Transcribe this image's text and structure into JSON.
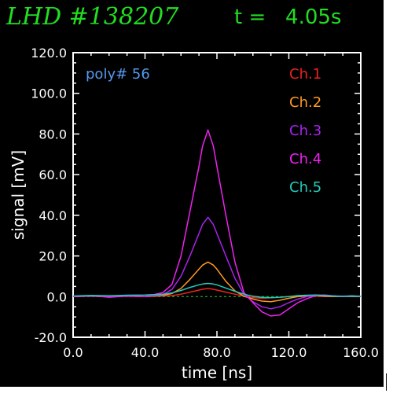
{
  "header": {
    "shot_label": "LHD #138207",
    "time_label": "t =   4.05s"
  },
  "chart_data": {
    "type": "line",
    "annotation": "poly# 56",
    "xlabel": "time [ns]",
    "ylabel": "signal [mV]",
    "xlim": [
      0,
      160
    ],
    "ylim": [
      -20,
      120
    ],
    "x_ticks": [
      "0.0",
      "40.0",
      "80.0",
      "120.0",
      "160.0"
    ],
    "y_ticks": [
      "-20.0",
      "0.0",
      "20.0",
      "40.0",
      "60.0",
      "80.0",
      "100.0",
      "120.0"
    ],
    "x_tick_values": [
      0,
      40,
      80,
      120,
      160
    ],
    "y_tick_values": [
      -20,
      0,
      20,
      40,
      60,
      80,
      100,
      120
    ],
    "grid": false,
    "legend_position": "top-right",
    "zero_line_color": "#22cc22",
    "x": [
      0,
      10,
      20,
      30,
      40,
      50,
      55,
      60,
      65,
      70,
      72,
      75,
      78,
      80,
      85,
      90,
      95,
      100,
      105,
      110,
      115,
      120,
      125,
      130,
      135,
      140,
      145,
      150,
      155,
      160
    ],
    "series": [
      {
        "name": "Ch.1",
        "color": "#ee2222",
        "values": [
          0,
          0.3,
          -0.2,
          0.2,
          0,
          0.3,
          0.5,
          1.2,
          2.2,
          3.2,
          3.6,
          4,
          3.6,
          3.2,
          2.2,
          1.2,
          0.2,
          -0.5,
          -0.8,
          -0.6,
          -0.3,
          0,
          0.2,
          0.3,
          0.2,
          0,
          0.1,
          0,
          0.2,
          0
        ]
      },
      {
        "name": "Ch.2",
        "color": "#ff9922",
        "values": [
          0,
          0.2,
          0,
          0.3,
          0,
          0.6,
          1.5,
          4,
          8.5,
          13.5,
          15.5,
          17,
          15.5,
          13.5,
          7.5,
          2.8,
          0.2,
          -1.2,
          -2.2,
          -2.5,
          -1.8,
          -0.8,
          0,
          0.4,
          0.6,
          0.2,
          0,
          0.1,
          0,
          0
        ]
      },
      {
        "name": "Ch.3",
        "color": "#aa22ee",
        "values": [
          0,
          0.3,
          0,
          0.2,
          0,
          1,
          3.5,
          10,
          20,
          31,
          35.5,
          39,
          35.5,
          31,
          20,
          9,
          1.2,
          -2.5,
          -5,
          -6,
          -5,
          -3,
          -1.2,
          0,
          0.8,
          0.7,
          0.3,
          0,
          0.2,
          0
        ]
      },
      {
        "name": "Ch.4",
        "color": "#ee22ee",
        "values": [
          0,
          0.5,
          -0.3,
          0.3,
          0,
          2,
          6,
          20,
          42,
          64,
          74,
          82,
          74,
          64,
          40,
          17,
          2,
          -3,
          -7.5,
          -9.5,
          -9,
          -6,
          -3,
          -1,
          0.5,
          0.8,
          0.3,
          0,
          0.4,
          0
        ]
      },
      {
        "name": "Ch.5",
        "color": "#22ccbb",
        "values": [
          0.3,
          0.6,
          0.4,
          0.7,
          0.8,
          1.2,
          1.8,
          3,
          4.5,
          5.8,
          6.2,
          6.5,
          6.2,
          5.8,
          4.2,
          2.6,
          1.2,
          0.2,
          -0.4,
          -0.5,
          -0.3,
          0,
          0.5,
          0.7,
          0.8,
          0.5,
          0.3,
          0.2,
          0.3,
          0.2
        ]
      }
    ]
  }
}
